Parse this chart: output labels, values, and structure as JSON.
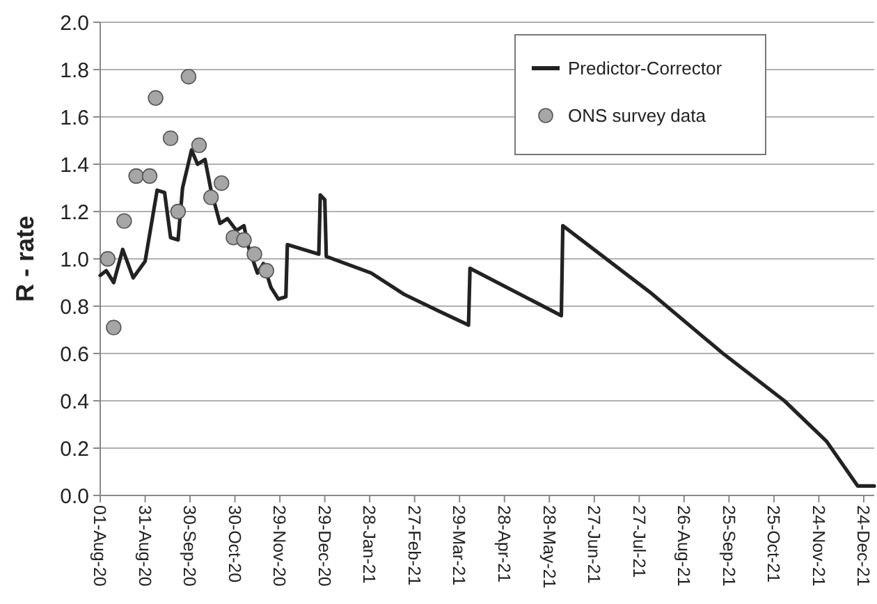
{
  "chart_data": {
    "type": "line",
    "ylabel": "R - rate",
    "xlim": [
      "2020-08-01",
      "2021-12-31"
    ],
    "ylim": [
      0,
      2
    ],
    "yticks": [
      {
        "value": 0,
        "label": "0.0"
      },
      {
        "value": 0.2,
        "label": "0.2"
      },
      {
        "value": 0.4,
        "label": "0.4"
      },
      {
        "value": 0.6,
        "label": "0.6"
      },
      {
        "value": 0.8,
        "label": "0.8"
      },
      {
        "value": 1,
        "label": "1.0"
      },
      {
        "value": 1.2,
        "label": "1.2"
      },
      {
        "value": 1.4,
        "label": "1.4"
      },
      {
        "value": 1.6,
        "label": "1.6"
      },
      {
        "value": 1.8,
        "label": "1.8"
      },
      {
        "value": 2,
        "label": "2.0"
      }
    ],
    "xticks": [
      {
        "value": "2020-08-01",
        "label": "01-Aug-20"
      },
      {
        "value": "2020-08-31",
        "label": "31-Aug-20"
      },
      {
        "value": "2020-09-30",
        "label": "30-Sep-20"
      },
      {
        "value": "2020-10-30",
        "label": "30-Oct-20"
      },
      {
        "value": "2020-11-29",
        "label": "29-Nov-20"
      },
      {
        "value": "2020-12-29",
        "label": "29-Dec-20"
      },
      {
        "value": "2021-01-28",
        "label": "28-Jan-21"
      },
      {
        "value": "2021-02-27",
        "label": "27-Feb-21"
      },
      {
        "value": "2021-03-29",
        "label": "29-Mar-21"
      },
      {
        "value": "2021-04-28",
        "label": "28-Apr-21"
      },
      {
        "value": "2021-05-28",
        "label": "28-May-21"
      },
      {
        "value": "2021-06-27",
        "label": "27-Jun-21"
      },
      {
        "value": "2021-07-27",
        "label": "27-Jul-21"
      },
      {
        "value": "2021-08-26",
        "label": "26-Aug-21"
      },
      {
        "value": "2021-09-25",
        "label": "25-Sep-21"
      },
      {
        "value": "2021-10-25",
        "label": "25-Oct-21"
      },
      {
        "value": "2021-11-24",
        "label": "24-Nov-21"
      },
      {
        "value": "2021-12-24",
        "label": "24-Dec-21"
      }
    ],
    "grid": "y",
    "legend": "top right",
    "line_style": "solid",
    "series": [
      {
        "name": "Predictor-Corrector",
        "color": "#222222",
        "marker": "none",
        "x": [
          "2020-08-01",
          "2020-08-05",
          "2020-08-10",
          "2020-08-16",
          "2020-08-23",
          "2020-08-31",
          "2020-09-08",
          "2020-09-13",
          "2020-09-17",
          "2020-09-22",
          "2020-09-25",
          "2020-10-01",
          "2020-10-05",
          "2020-10-10",
          "2020-10-14",
          "2020-10-20",
          "2020-10-25",
          "2020-10-31",
          "2020-11-05",
          "2020-11-08",
          "2020-11-14",
          "2020-11-18",
          "2020-11-23",
          "2020-11-28",
          "2020-12-03",
          "2020-12-04",
          "2020-12-25",
          "2020-12-26",
          "2020-12-29",
          "2020-12-30",
          "2021-01-29",
          "2021-02-20",
          "2021-03-15",
          "2021-04-04",
          "2021-04-05",
          "2021-06-05",
          "2021-06-06",
          "2021-08-03",
          "2021-09-21",
          "2021-11-01",
          "2021-11-29",
          "2021-12-20",
          "2021-12-31"
        ],
        "values": [
          0.93,
          0.95,
          0.9,
          1.04,
          0.92,
          0.99,
          1.29,
          1.28,
          1.09,
          1.08,
          1.3,
          1.46,
          1.4,
          1.42,
          1.29,
          1.15,
          1.17,
          1.12,
          1.14,
          1.05,
          0.94,
          0.98,
          0.88,
          0.83,
          0.84,
          1.06,
          1.02,
          1.27,
          1.25,
          1.01,
          0.94,
          0.85,
          0.78,
          0.72,
          0.96,
          0.76,
          1.14,
          0.86,
          0.6,
          0.4,
          0.23,
          0.04,
          0.04
        ]
      },
      {
        "name": "ONS survey data",
        "type": "scatter",
        "color": "#a6a6a6",
        "marker": "circle",
        "x": [
          "2020-08-06",
          "2020-08-10",
          "2020-08-17",
          "2020-08-25",
          "2020-09-03",
          "2020-09-07",
          "2020-09-17",
          "2020-09-22",
          "2020-09-29",
          "2020-10-06",
          "2020-10-14",
          "2020-10-21",
          "2020-10-29",
          "2020-11-05",
          "2020-11-12",
          "2020-11-20"
        ],
        "values": [
          1.0,
          0.71,
          1.16,
          1.35,
          1.35,
          1.68,
          1.51,
          1.2,
          1.77,
          1.48,
          1.26,
          1.32,
          1.09,
          1.08,
          1.02,
          0.95
        ]
      }
    ]
  }
}
